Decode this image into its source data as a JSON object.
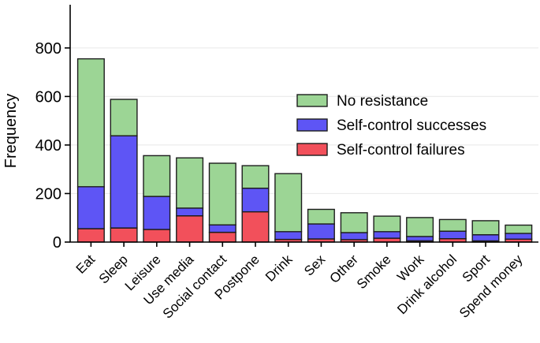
{
  "chart_data": {
    "type": "bar",
    "stacked": true,
    "title": "",
    "xlabel": "",
    "ylabel": "Frequency",
    "categories": [
      "Eat",
      "Sleep",
      "Leisure",
      "Use media",
      "Social contact",
      "Postpone",
      "Drink",
      "Sex",
      "Other",
      "Smoke",
      "Work",
      "Drink alcohol",
      "Sport",
      "Spend money"
    ],
    "series": [
      {
        "name": "Self-control failures",
        "color": "#f2505b",
        "values": [
          55,
          58,
          52,
          108,
          40,
          125,
          11,
          13,
          10,
          16,
          5,
          14,
          5,
          12
        ]
      },
      {
        "name": "Self-control successes",
        "color": "#5e55f5",
        "values": [
          173,
          380,
          136,
          32,
          31,
          97,
          32,
          62,
          29,
          27,
          18,
          31,
          25,
          24
        ]
      },
      {
        "name": "No resistance",
        "color": "#9cd595",
        "values": [
          527,
          150,
          168,
          207,
          254,
          93,
          239,
          60,
          82,
          64,
          78,
          48,
          58,
          34
        ]
      }
    ],
    "totals": [
      755,
      588,
      356,
      347,
      325,
      315,
      282,
      135,
      121,
      107,
      101,
      93,
      88,
      70
    ],
    "yticks": [
      0,
      200,
      400,
      600,
      800
    ],
    "ylim": [
      0,
      970
    ],
    "grid": "horizontal",
    "legend_position": "upper-right-inside",
    "legend_order": [
      "No resistance",
      "Self-control successes",
      "Self-control failures"
    ]
  },
  "style": {
    "bar_border_color": "#1d1d1d",
    "grid_color": "#ececec",
    "axis_color": "#000000",
    "background_color": "#ffffff"
  }
}
